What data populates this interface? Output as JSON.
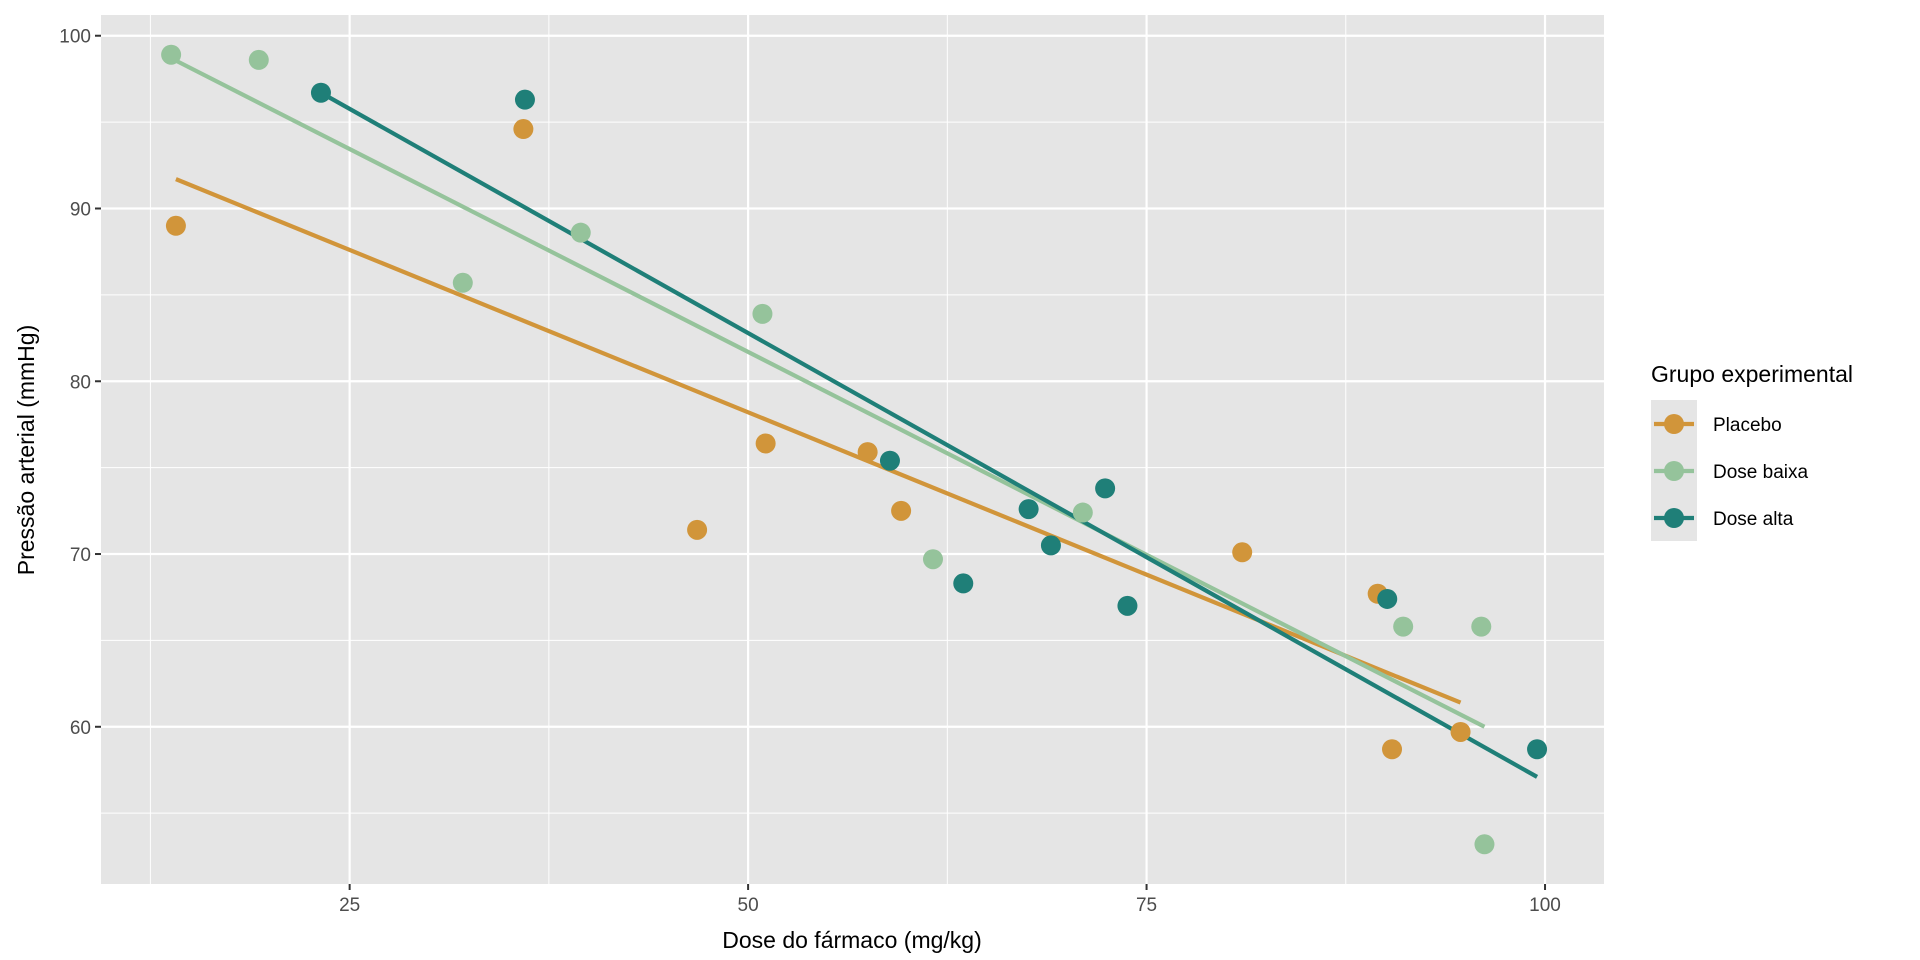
{
  "chart_data": {
    "type": "scatter",
    "title": "",
    "xlabel": "Dose do fármaco (mg/kg)",
    "ylabel": "Pressão arterial (mmHg)",
    "xlim": [
      9.4,
      103.7
    ],
    "ylim": [
      50.9,
      101.2
    ],
    "xticks": [
      25,
      50,
      75,
      100
    ],
    "yticks": [
      60,
      70,
      80,
      90,
      100
    ],
    "xminor": [
      12.5,
      37.5,
      62.5,
      87.5
    ],
    "yminor": [
      55,
      65,
      75,
      85,
      95
    ],
    "grid": true,
    "legend": {
      "title": "Grupo experimental",
      "placement": "right"
    },
    "series": [
      {
        "name": "Placebo",
        "color": "#D1953A",
        "points": [
          [
            14.1,
            89.0
          ],
          [
            35.9,
            94.6
          ],
          [
            46.8,
            71.4
          ],
          [
            51.1,
            76.4
          ],
          [
            57.5,
            75.9
          ],
          [
            59.6,
            72.5
          ],
          [
            81.0,
            70.1
          ],
          [
            89.5,
            67.7
          ],
          [
            90.4,
            58.7
          ],
          [
            94.7,
            59.7
          ]
        ],
        "fit": [
          [
            14.1,
            91.7
          ],
          [
            94.7,
            61.4
          ]
        ]
      },
      {
        "name": "Dose baixa",
        "color": "#95C39B",
        "points": [
          [
            13.8,
            98.9
          ],
          [
            19.3,
            98.6
          ],
          [
            32.1,
            85.7
          ],
          [
            39.5,
            88.6
          ],
          [
            50.9,
            83.9
          ],
          [
            61.6,
            69.7
          ],
          [
            71.0,
            72.4
          ],
          [
            91.1,
            65.8
          ],
          [
            96.0,
            65.8
          ],
          [
            96.2,
            53.2
          ]
        ],
        "fit": [
          [
            13.8,
            98.7
          ],
          [
            96.2,
            60.0
          ]
        ]
      },
      {
        "name": "Dose alta",
        "color": "#1F7F78",
        "points": [
          [
            23.2,
            96.7
          ],
          [
            36.0,
            96.3
          ],
          [
            58.9,
            75.4
          ],
          [
            63.5,
            68.3
          ],
          [
            67.6,
            72.6
          ],
          [
            69.0,
            70.5
          ],
          [
            72.4,
            73.8
          ],
          [
            73.8,
            67.0
          ],
          [
            90.1,
            67.4
          ],
          [
            99.5,
            58.7
          ]
        ],
        "fit": [
          [
            23.2,
            96.7
          ],
          [
            99.5,
            57.1
          ]
        ]
      }
    ]
  }
}
